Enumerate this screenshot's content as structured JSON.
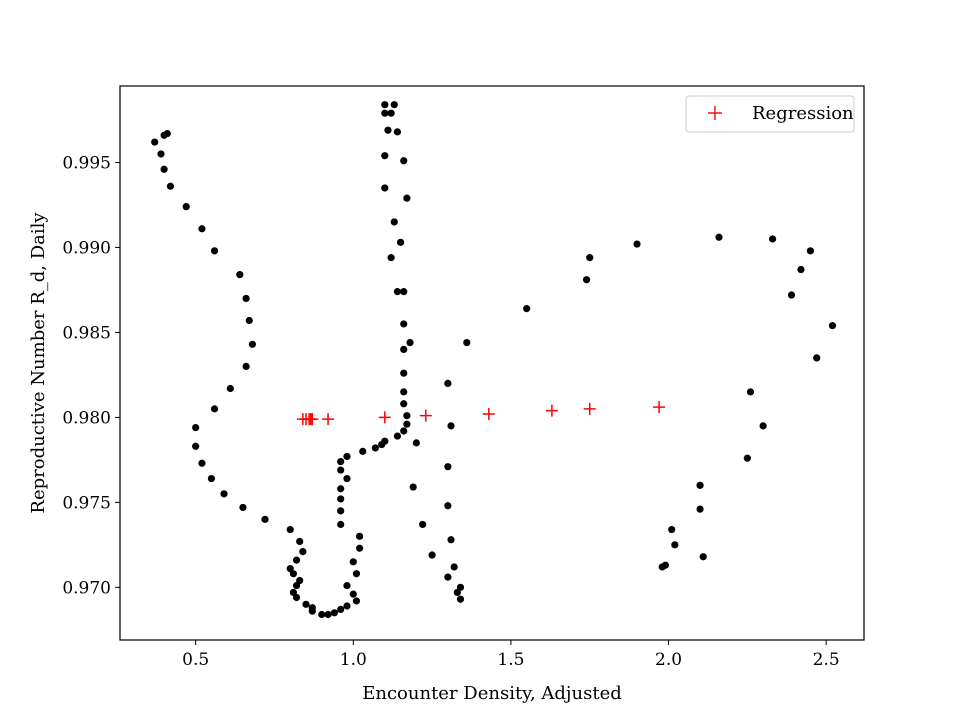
{
  "chart_data": {
    "type": "scatter",
    "title": "",
    "xlabel": "Encounter Density, Adjusted",
    "ylabel": "Reproductive Number R_d, Daily",
    "xlim": [
      0.26,
      2.62
    ],
    "ylim": [
      0.9669,
      0.9995
    ],
    "xticks": [
      0.5,
      1.0,
      1.5,
      2.0,
      2.5
    ],
    "xtick_labels": [
      "0.5",
      "1.0",
      "1.5",
      "2.0",
      "2.5"
    ],
    "yticks": [
      0.97,
      0.975,
      0.98,
      0.985,
      0.99,
      0.995
    ],
    "ytick_labels": [
      "0.970",
      "0.975",
      "0.980",
      "0.985",
      "0.990",
      "0.995"
    ],
    "grid": false,
    "legend_position": "top-right",
    "series": [
      {
        "marker": "dot",
        "color": "#000000",
        "points": [
          [
            0.37,
            0.9962
          ],
          [
            0.39,
            0.9955
          ],
          [
            0.4,
            0.9946
          ],
          [
            0.4,
            0.9966
          ],
          [
            0.41,
            0.9967
          ],
          [
            0.42,
            0.9936
          ],
          [
            0.47,
            0.9924
          ],
          [
            0.52,
            0.9911
          ],
          [
            0.56,
            0.9898
          ],
          [
            0.64,
            0.9884
          ],
          [
            0.66,
            0.987
          ],
          [
            0.67,
            0.9857
          ],
          [
            0.68,
            0.9843
          ],
          [
            0.66,
            0.983
          ],
          [
            0.61,
            0.9817
          ],
          [
            0.56,
            0.9805
          ],
          [
            0.5,
            0.9794
          ],
          [
            0.5,
            0.9783
          ],
          [
            0.52,
            0.9773
          ],
          [
            0.55,
            0.9764
          ],
          [
            0.59,
            0.9755
          ],
          [
            0.65,
            0.9747
          ],
          [
            0.72,
            0.974
          ],
          [
            0.8,
            0.9734
          ],
          [
            0.83,
            0.9727
          ],
          [
            0.84,
            0.9721
          ],
          [
            0.82,
            0.9716
          ],
          [
            0.8,
            0.9711
          ],
          [
            0.81,
            0.9708
          ],
          [
            0.83,
            0.9704
          ],
          [
            0.82,
            0.9701
          ],
          [
            0.81,
            0.9697
          ],
          [
            0.82,
            0.9694
          ],
          [
            0.85,
            0.969
          ],
          [
            0.87,
            0.9686
          ],
          [
            0.87,
            0.9688
          ],
          [
            0.9,
            0.9684
          ],
          [
            0.92,
            0.9684
          ],
          [
            0.94,
            0.9685
          ],
          [
            0.96,
            0.9687
          ],
          [
            0.98,
            0.9689
          ],
          [
            1.01,
            0.9692
          ],
          [
            1.0,
            0.9696
          ],
          [
            0.98,
            0.9701
          ],
          [
            1.01,
            0.9708
          ],
          [
            1.0,
            0.9715
          ],
          [
            1.02,
            0.9723
          ],
          [
            1.02,
            0.973
          ],
          [
            0.96,
            0.9737
          ],
          [
            0.96,
            0.9745
          ],
          [
            0.96,
            0.9752
          ],
          [
            0.96,
            0.9758
          ],
          [
            0.98,
            0.9764
          ],
          [
            0.96,
            0.9769
          ],
          [
            0.96,
            0.9774
          ],
          [
            0.98,
            0.9777
          ],
          [
            1.03,
            0.978
          ],
          [
            1.07,
            0.9782
          ],
          [
            1.09,
            0.9784
          ],
          [
            1.1,
            0.9786
          ],
          [
            1.14,
            0.9789
          ],
          [
            1.16,
            0.9792
          ],
          [
            1.17,
            0.9796
          ],
          [
            1.17,
            0.9801
          ],
          [
            1.16,
            0.9808
          ],
          [
            1.16,
            0.9815
          ],
          [
            1.16,
            0.9826
          ],
          [
            1.16,
            0.984
          ],
          [
            1.18,
            0.9844
          ],
          [
            1.16,
            0.9855
          ],
          [
            1.14,
            0.9874
          ],
          [
            1.16,
            0.9874
          ],
          [
            1.12,
            0.9894
          ],
          [
            1.15,
            0.9903
          ],
          [
            1.13,
            0.9915
          ],
          [
            1.17,
            0.9929
          ],
          [
            1.1,
            0.9935
          ],
          [
            1.16,
            0.9951
          ],
          [
            1.1,
            0.9954
          ],
          [
            1.14,
            0.9968
          ],
          [
            1.11,
            0.9969
          ],
          [
            1.1,
            0.9979
          ],
          [
            1.12,
            0.9979
          ],
          [
            1.1,
            0.9984
          ],
          [
            1.13,
            0.9984
          ],
          [
            1.2,
            0.9785
          ],
          [
            1.19,
            0.9759
          ],
          [
            1.22,
            0.9737
          ],
          [
            1.25,
            0.9719
          ],
          [
            1.3,
            0.9706
          ],
          [
            1.32,
            0.9712
          ],
          [
            1.33,
            0.9697
          ],
          [
            1.34,
            0.9693
          ],
          [
            1.34,
            0.97
          ],
          [
            1.31,
            0.9728
          ],
          [
            1.3,
            0.9748
          ],
          [
            1.3,
            0.9771
          ],
          [
            1.31,
            0.9795
          ],
          [
            1.3,
            0.982
          ],
          [
            1.36,
            0.9844
          ],
          [
            1.55,
            0.9864
          ],
          [
            1.74,
            0.9881
          ],
          [
            1.75,
            0.9894
          ],
          [
            1.9,
            0.9902
          ],
          [
            2.16,
            0.9906
          ],
          [
            2.33,
            0.9905
          ],
          [
            2.45,
            0.9898
          ],
          [
            2.42,
            0.9887
          ],
          [
            2.39,
            0.9872
          ],
          [
            2.52,
            0.9854
          ],
          [
            2.47,
            0.9835
          ],
          [
            2.26,
            0.9815
          ],
          [
            2.3,
            0.9795
          ],
          [
            2.25,
            0.9776
          ],
          [
            2.1,
            0.976
          ],
          [
            2.1,
            0.9746
          ],
          [
            2.01,
            0.9734
          ],
          [
            2.02,
            0.9725
          ],
          [
            2.11,
            0.9718
          ],
          [
            1.99,
            0.9713
          ],
          [
            1.98,
            0.9712
          ]
        ]
      },
      {
        "name": "Regression",
        "marker": "plus",
        "color": "#ff0000",
        "points": [
          [
            0.84,
            0.9799
          ],
          [
            0.85,
            0.9799
          ],
          [
            0.86,
            0.9799
          ],
          [
            0.865,
            0.9799
          ],
          [
            0.87,
            0.9799
          ],
          [
            0.92,
            0.9799
          ],
          [
            1.1,
            0.98
          ],
          [
            1.23,
            0.9801
          ],
          [
            1.43,
            0.9802
          ],
          [
            1.63,
            0.9804
          ],
          [
            1.75,
            0.9805
          ],
          [
            1.97,
            0.9806
          ]
        ]
      }
    ]
  }
}
